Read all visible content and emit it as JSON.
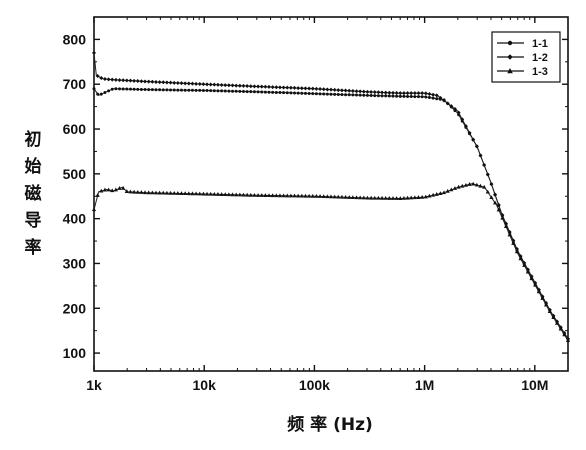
{
  "chart_data": {
    "type": "line",
    "xlabel": "频 率 (Hz)",
    "ylabel": "初始磁导率",
    "xscale": "log",
    "xlim": [
      1000,
      20000000
    ],
    "ylim": [
      60,
      850
    ],
    "x_ticks": [
      {
        "value": 1000,
        "label": "1k"
      },
      {
        "value": 10000,
        "label": "10k"
      },
      {
        "value": 100000,
        "label": "100k"
      },
      {
        "value": 1000000,
        "label": "1M"
      },
      {
        "value": 10000000,
        "label": "10M"
      }
    ],
    "y_ticks": [
      100,
      200,
      300,
      400,
      500,
      600,
      700,
      800
    ],
    "legend_position": "top-right",
    "series": [
      {
        "name": "1-1",
        "marker": "circle",
        "points": [
          [
            1000,
            690
          ],
          [
            1100,
            675
          ],
          [
            1500,
            690
          ],
          [
            3000,
            688
          ],
          [
            10000,
            686
          ],
          [
            30000,
            683
          ],
          [
            100000,
            679
          ],
          [
            300000,
            675
          ],
          [
            600000,
            673
          ],
          [
            1000000,
            672
          ],
          [
            1500000,
            665
          ],
          [
            2000000,
            635
          ],
          [
            3000000,
            560
          ],
          [
            4000000,
            480
          ],
          [
            5000000,
            410
          ],
          [
            7000000,
            325
          ],
          [
            10000000,
            255
          ],
          [
            14000000,
            190
          ],
          [
            20000000,
            130
          ]
        ]
      },
      {
        "name": "1-2",
        "marker": "diamond",
        "points": [
          [
            1000,
            770
          ],
          [
            1050,
            720
          ],
          [
            1200,
            712
          ],
          [
            1500,
            710
          ],
          [
            3000,
            706
          ],
          [
            10000,
            700
          ],
          [
            30000,
            695
          ],
          [
            100000,
            690
          ],
          [
            300000,
            683
          ],
          [
            600000,
            680
          ],
          [
            1000000,
            680
          ],
          [
            1300000,
            675
          ],
          [
            2000000,
            640
          ],
          [
            3000000,
            560
          ],
          [
            4000000,
            480
          ],
          [
            5000000,
            412
          ],
          [
            7000000,
            328
          ],
          [
            10000000,
            258
          ],
          [
            14000000,
            192
          ],
          [
            20000000,
            132
          ]
        ]
      },
      {
        "name": "1-3",
        "marker": "triangle",
        "points": [
          [
            1000,
            420
          ],
          [
            1100,
            460
          ],
          [
            1300,
            465
          ],
          [
            1500,
            462
          ],
          [
            1800,
            470
          ],
          [
            2000,
            460
          ],
          [
            3000,
            458
          ],
          [
            10000,
            455
          ],
          [
            30000,
            452
          ],
          [
            100000,
            450
          ],
          [
            300000,
            446
          ],
          [
            600000,
            445
          ],
          [
            1000000,
            448
          ],
          [
            1500000,
            458
          ],
          [
            2000000,
            470
          ],
          [
            2700000,
            478
          ],
          [
            3500000,
            470
          ],
          [
            4500000,
            430
          ],
          [
            5000000,
            405
          ],
          [
            7000000,
            322
          ],
          [
            10000000,
            253
          ],
          [
            14000000,
            188
          ],
          [
            20000000,
            128
          ]
        ]
      }
    ]
  }
}
